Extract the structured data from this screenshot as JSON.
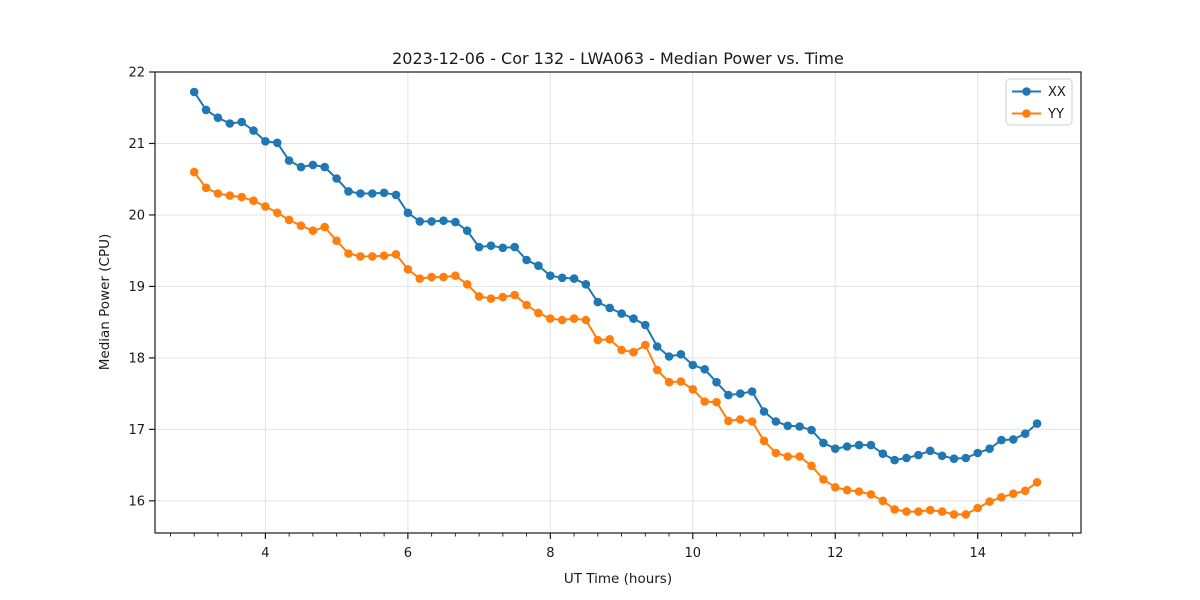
{
  "window": {
    "title": "2023-12-06 - Cor 132 - LWA063 - Median Power vs. Time"
  },
  "chart_data": {
    "type": "line",
    "title": "2023-12-06 - Cor 132 - LWA063 - Median Power vs. Time",
    "xlabel": "UT Time (hours)",
    "ylabel": "Median Power (CPU)",
    "xlim": [
      2.45,
      15.45
    ],
    "ylim": [
      15.55,
      22.0
    ],
    "xticks": [
      4,
      6,
      8,
      10,
      12,
      14
    ],
    "yticks": [
      16,
      17,
      18,
      19,
      20,
      21,
      22
    ],
    "x_minor_step": 0.3333333,
    "grid": true,
    "legend_position": "upper right",
    "marker": "circle",
    "x": [
      3.0,
      3.167,
      3.333,
      3.5,
      3.667,
      3.833,
      4.0,
      4.167,
      4.333,
      4.5,
      4.667,
      4.833,
      5.0,
      5.167,
      5.333,
      5.5,
      5.667,
      5.833,
      6.0,
      6.167,
      6.333,
      6.5,
      6.667,
      6.833,
      7.0,
      7.167,
      7.333,
      7.5,
      7.667,
      7.833,
      8.0,
      8.167,
      8.333,
      8.5,
      8.667,
      8.833,
      9.0,
      9.167,
      9.333,
      9.5,
      9.667,
      9.833,
      10.0,
      10.167,
      10.333,
      10.5,
      10.667,
      10.833,
      11.0,
      11.167,
      11.333,
      11.5,
      11.667,
      11.833,
      12.0,
      12.167,
      12.333,
      12.5,
      12.667,
      12.833,
      13.0,
      13.167,
      13.333,
      13.5,
      13.667,
      13.833,
      14.0,
      14.167,
      14.333,
      14.5,
      14.667,
      14.833
    ],
    "series": [
      {
        "name": "XX",
        "color": "#1f77b4",
        "values": [
          21.72,
          21.47,
          21.36,
          21.28,
          21.3,
          21.18,
          21.03,
          21.01,
          20.76,
          20.67,
          20.7,
          20.67,
          20.51,
          20.33,
          20.3,
          20.3,
          20.31,
          20.28,
          20.03,
          19.91,
          19.91,
          19.92,
          19.9,
          19.78,
          19.55,
          19.57,
          19.54,
          19.55,
          19.37,
          19.29,
          19.15,
          19.12,
          19.11,
          19.03,
          18.78,
          18.7,
          18.62,
          18.55,
          18.46,
          18.16,
          18.02,
          18.05,
          17.9,
          17.84,
          17.66,
          17.48,
          17.5,
          17.53,
          17.25,
          17.11,
          17.05,
          17.04,
          16.99,
          16.81,
          16.73,
          16.76,
          16.78,
          16.78,
          16.66,
          16.57,
          16.6,
          16.64,
          16.7,
          16.63,
          16.59,
          16.6,
          16.67,
          16.73,
          16.85,
          16.86,
          16.94,
          17.08
        ]
      },
      {
        "name": "YY",
        "color": "#ff7f0e",
        "values": [
          20.6,
          20.38,
          20.3,
          20.27,
          20.25,
          20.2,
          20.12,
          20.03,
          19.93,
          19.85,
          19.78,
          19.83,
          19.64,
          19.46,
          19.42,
          19.42,
          19.43,
          19.45,
          19.24,
          19.11,
          19.13,
          19.13,
          19.15,
          19.03,
          18.86,
          18.83,
          18.85,
          18.88,
          18.74,
          18.63,
          18.55,
          18.53,
          18.55,
          18.53,
          18.25,
          18.26,
          18.11,
          18.08,
          18.18,
          17.83,
          17.66,
          17.67,
          17.56,
          17.39,
          17.38,
          17.12,
          17.14,
          17.11,
          16.84,
          16.67,
          16.62,
          16.62,
          16.49,
          16.3,
          16.19,
          16.15,
          16.13,
          16.09,
          16.0,
          15.88,
          15.85,
          15.85,
          15.87,
          15.85,
          15.81,
          15.81,
          15.9,
          15.99,
          16.05,
          16.1,
          16.14,
          16.26
        ]
      }
    ]
  }
}
